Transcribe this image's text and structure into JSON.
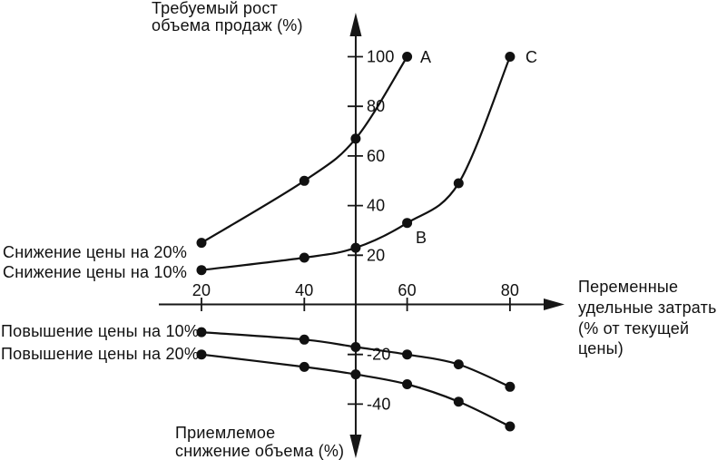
{
  "chart_data": {
    "type": "line",
    "title": "",
    "y_axis_top_label": {
      "line1": "Требуемый рост",
      "line2": "объема продаж (%)"
    },
    "y_axis_bottom_label": {
      "line1": "Приемлемое",
      "line2": "снижение объема (%)"
    },
    "x_axis_label": {
      "line1": "Переменные",
      "line2": "удельные затраты",
      "line3": "(% от текущей",
      "line4": "цены)"
    },
    "x_ticks": [
      20,
      40,
      60,
      80
    ],
    "y_ticks": [
      100,
      80,
      60,
      40,
      20,
      -20,
      -40
    ],
    "x_axis_crosses_at": 50,
    "x_range_shown": [
      20,
      80
    ],
    "y_range_shown": [
      -49,
      100
    ],
    "grid": false,
    "legend_position": "labels-at-line-start",
    "series": [
      {
        "name": "Снижение цены на 20%",
        "x": [
          20,
          40,
          50,
          60
        ],
        "y": [
          25,
          50,
          67,
          100
        ],
        "end_point_label": "A"
      },
      {
        "name": "Снижение цены на 10%",
        "x": [
          20,
          40,
          50,
          60,
          70,
          80
        ],
        "y": [
          14,
          19,
          23,
          33,
          49,
          100
        ],
        "mid_point_label": "B",
        "end_point_label": "C"
      },
      {
        "name": "Повышение цены на 10%",
        "x": [
          20,
          40,
          50,
          60,
          70,
          80
        ],
        "y": [
          -11,
          -14,
          -17,
          -20,
          -24,
          -33
        ]
      },
      {
        "name": "Повышение цены на 20%",
        "x": [
          20,
          40,
          50,
          60,
          70,
          80
        ],
        "y": [
          -20,
          -25,
          -28,
          -32,
          -39,
          -49
        ]
      }
    ],
    "point_labels": [
      {
        "text": "A",
        "at_x": 60,
        "at_y": 100
      },
      {
        "text": "B",
        "at_x": 60,
        "at_y": 33
      },
      {
        "text": "C",
        "at_x": 80,
        "at_y": 100
      }
    ],
    "colors": {
      "ink": "#111111",
      "background": "#ffffff"
    }
  }
}
